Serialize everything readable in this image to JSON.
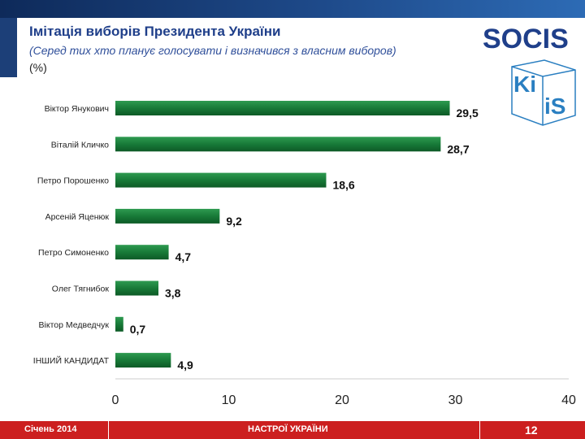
{
  "header": {
    "title": "Імітація виборів Президента України",
    "subtitle": "(Серед тих хто планує голосувати і визначився з власним виборов)",
    "unit": "(%)"
  },
  "logos": {
    "socis": "SOCIS",
    "kiis_top": "Ki",
    "kiis_bottom": "iS"
  },
  "chart_data": {
    "type": "bar",
    "orientation": "horizontal",
    "title": "Імітація виборів Президента України",
    "xlabel": "",
    "ylabel": "",
    "xlim": [
      0,
      40
    ],
    "xticks": [
      "0",
      "10",
      "20",
      "30",
      "40"
    ],
    "grid": false,
    "bar_color": "#1a7a3c",
    "categories": [
      "Віктор Янукович",
      "Віталій Кличко",
      "Петро Порошенко",
      "Арсеній Яценюк",
      "Петро Симоненко",
      "Олег Тягнибок",
      "Віктор Медведчук",
      "ІНШИЙ КАНДИДАТ"
    ],
    "values": [
      29.5,
      28.7,
      18.6,
      9.2,
      4.7,
      3.8,
      0.7,
      4.9
    ],
    "labels": [
      "29,5",
      "28,7",
      "18,6",
      "9,2",
      "4,7",
      "3,8",
      "0,7",
      "4,9"
    ]
  },
  "footer": {
    "date": "Січень 2014",
    "center": "НАСТРОЇ УКРАЇНИ",
    "page": "12"
  }
}
